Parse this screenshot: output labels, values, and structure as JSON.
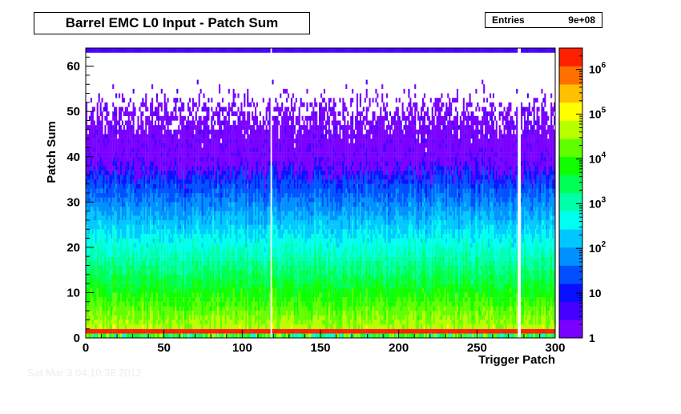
{
  "chart_data": {
    "type": "heatmap",
    "title": "Barrel EMC L0 Input - Patch Sum",
    "stats": {
      "label": "Entries",
      "value": "9e+08"
    },
    "xlabel": "Trigger Patch",
    "ylabel": "Patch Sum",
    "xlim": [
      0,
      300
    ],
    "ylim": [
      0,
      64
    ],
    "x_ticks": [
      "0",
      "50",
      "100",
      "150",
      "200",
      "250",
      "300"
    ],
    "y_ticks": [
      "0",
      "10",
      "20",
      "30",
      "40",
      "50",
      "60"
    ],
    "z_scale": "log",
    "z_range": [
      1,
      3000000
    ],
    "z_ticks": [
      {
        "base": "1",
        "exp": ""
      },
      {
        "base": "10",
        "exp": ""
      },
      {
        "base": "10",
        "exp": "2"
      },
      {
        "base": "10",
        "exp": "3"
      },
      {
        "base": "10",
        "exp": "4"
      },
      {
        "base": "10",
        "exp": "5"
      },
      {
        "base": "10",
        "exp": "6"
      }
    ],
    "colormap": [
      "#7a00ff",
      "#4400ff",
      "#0a10ff",
      "#0050ff",
      "#0090ff",
      "#00c8ff",
      "#00ffee",
      "#00ffaa",
      "#00ff55",
      "#10ff00",
      "#60ff00",
      "#b8ff00",
      "#ffff00",
      "#ffc000",
      "#ff7000",
      "#ff2000"
    ],
    "binning": {
      "x_bins": 300,
      "y_bins": 64
    },
    "empty_patches": [
      118,
      276,
      277
    ],
    "notes_visible": {
      "saturated_row": "Patch Sum 1-2 (red band)",
      "top_row": "Patch Sum 63 (overflow)"
    }
  },
  "timestamp": "Sat Mar  3 04:10:38 2012"
}
